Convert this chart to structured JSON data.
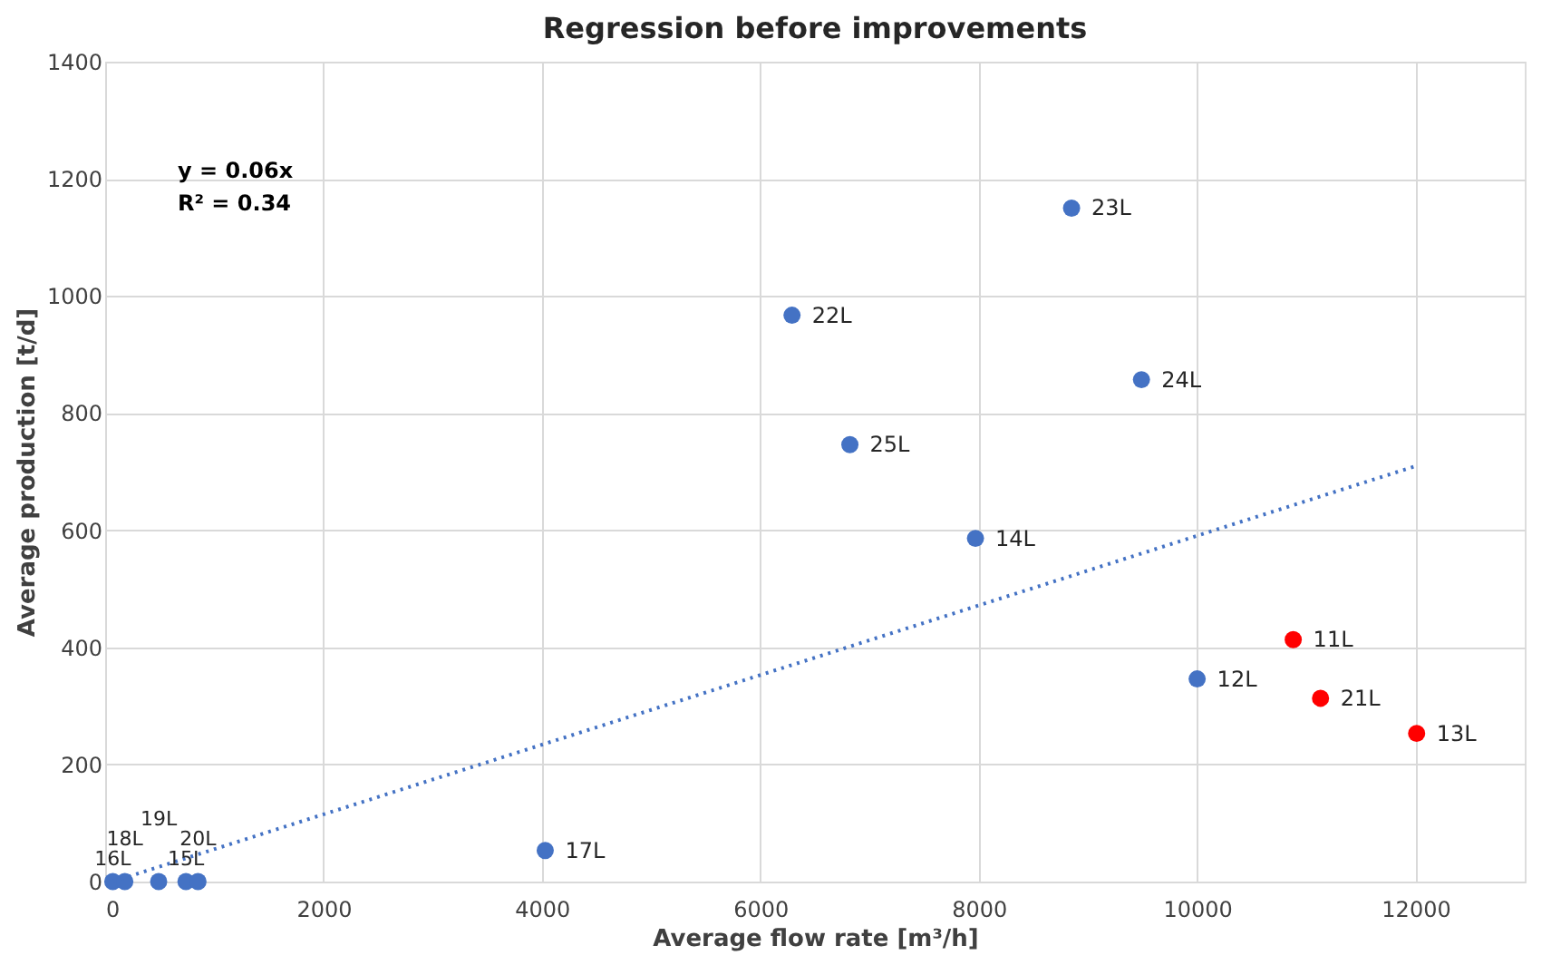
{
  "chart_data": {
    "type": "scatter",
    "title": "Regression before improvements",
    "xlabel": "Average flow rate [m³/h]",
    "ylabel": "Average production [t/d]",
    "xlim": [
      0,
      13000
    ],
    "xticks": [
      0,
      2000,
      4000,
      6000,
      8000,
      10000,
      12000
    ],
    "ylim": [
      0,
      1400
    ],
    "yticks": [
      0,
      200,
      400,
      600,
      800,
      1000,
      1200,
      1400
    ],
    "grid": true,
    "marker": "circle",
    "annotations": [
      "y = 0.06x",
      "R² = 0.34",
      {
        "text": "23L",
        "x": 8850,
        "y": 1150
      },
      {
        "text": "22L",
        "x": 6290,
        "y": 967
      },
      {
        "text": "24L",
        "x": 9490,
        "y": 857
      },
      {
        "text": "25L",
        "x": 6820,
        "y": 746
      },
      {
        "text": "14L",
        "x": 7970,
        "y": 586
      },
      {
        "text": "12L",
        "x": 10000,
        "y": 346
      },
      {
        "text": "17L",
        "x": 4030,
        "y": 53
      },
      {
        "text": "16L",
        "x": 70,
        "y": 0
      },
      {
        "text": "18L",
        "x": 180,
        "y": 0
      },
      {
        "text": "19L",
        "x": 490,
        "y": 0
      },
      {
        "text": "15L",
        "x": 740,
        "y": 0
      },
      {
        "text": "20L",
        "x": 850,
        "y": 0
      },
      {
        "text": "11L",
        "x": 10880,
        "y": 413
      },
      {
        "text": "21L",
        "x": 11130,
        "y": 313
      },
      {
        "text": "13L",
        "x": 12010,
        "y": 253
      }
    ],
    "series": [
      {
        "color": "#4472c4",
        "x": [
          8850,
          6290,
          9490,
          6820,
          7970,
          10000,
          4030,
          70,
          180,
          490,
          740,
          850
        ],
        "values": [
          1150,
          967,
          857,
          746,
          586,
          346,
          53,
          0,
          0,
          0,
          0,
          0
        ]
      },
      {
        "color": "#ff0000",
        "x": [
          10880,
          11130,
          12010
        ],
        "values": [
          413,
          313,
          253
        ]
      },
      {
        "type": "line",
        "color": "#4472c4",
        "line_style": "dotted",
        "marker": "none",
        "x": [
          70,
          12010
        ],
        "values": [
          0,
          710
        ]
      }
    ]
  }
}
